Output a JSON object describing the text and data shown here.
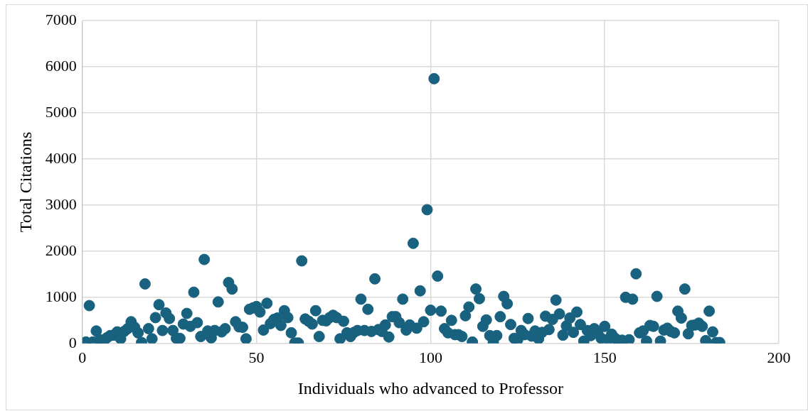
{
  "chart_data": {
    "type": "scatter",
    "xlabel": "Individuals who advanced to Professor",
    "ylabel": "Total Citations",
    "x": [
      1,
      2,
      3,
      4,
      5,
      6,
      7,
      8,
      9,
      10,
      11,
      12,
      13,
      14,
      15,
      16,
      17,
      18,
      19,
      20,
      21,
      22,
      23,
      24,
      25,
      26,
      27,
      28,
      29,
      30,
      31,
      32,
      33,
      34,
      35,
      36,
      37,
      38,
      39,
      40,
      41,
      42,
      43,
      44,
      45,
      46,
      47,
      48,
      49,
      50,
      51,
      52,
      53,
      54,
      55,
      56,
      57,
      58,
      59,
      60,
      61,
      62,
      63,
      64,
      65,
      66,
      67,
      68,
      69,
      70,
      71,
      72,
      73,
      74,
      75,
      76,
      77,
      78,
      79,
      80,
      81,
      82,
      83,
      84,
      85,
      86,
      87,
      88,
      89,
      90,
      91,
      92,
      93,
      94,
      95,
      96,
      97,
      98,
      99,
      100,
      101,
      102,
      103,
      104,
      105,
      106,
      107,
      108,
      109,
      110,
      111,
      112,
      113,
      114,
      115,
      116,
      117,
      118,
      119,
      120,
      121,
      122,
      123,
      124,
      125,
      126,
      127,
      128,
      129,
      130,
      131,
      132,
      133,
      134,
      135,
      136,
      137,
      138,
      139,
      140,
      141,
      142,
      143,
      144,
      145,
      146,
      147,
      148,
      149,
      150,
      151,
      152,
      153,
      154,
      155,
      156,
      157,
      158,
      159,
      160,
      161,
      162,
      163,
      164,
      165,
      166,
      167,
      168,
      169,
      170,
      171,
      172,
      173,
      174,
      175,
      176,
      177,
      178,
      179,
      180,
      181,
      182,
      183
    ],
    "series": [
      {
        "color": "#19627f",
        "values": [
          30,
          820,
          30,
          270,
          80,
          20,
          120,
          170,
          180,
          250,
          100,
          260,
          320,
          470,
          350,
          230,
          20,
          1290,
          320,
          100,
          560,
          840,
          280,
          660,
          540,
          280,
          110,
          110,
          420,
          650,
          370,
          1110,
          450,
          150,
          1820,
          270,
          120,
          280,
          900,
          250,
          320,
          1320,
          1180,
          470,
          360,
          350,
          100,
          740,
          770,
          800,
          680,
          290,
          870,
          430,
          520,
          550,
          390,
          710,
          560,
          230,
          10,
          10,
          1790,
          530,
          480,
          420,
          710,
          150,
          500,
          490,
          560,
          610,
          560,
          100,
          480,
          230,
          150,
          240,
          280,
          960,
          280,
          740,
          260,
          1400,
          300,
          260,
          400,
          140,
          580,
          580,
          450,
          960,
          290,
          400,
          2170,
          330,
          1140,
          470,
          2900,
          720,
          5740,
          1460,
          700,
          320,
          230,
          500,
          190,
          190,
          150,
          600,
          790,
          30,
          1180,
          970,
          370,
          510,
          170,
          20,
          170,
          580,
          1020,
          860,
          410,
          110,
          80,
          280,
          190,
          540,
          160,
          270,
          100,
          240,
          590,
          300,
          520,
          940,
          640,
          180,
          380,
          550,
          240,
          680,
          410,
          50,
          280,
          170,
          320,
          230,
          110,
          370,
          90,
          200,
          110,
          50,
          70,
          1000,
          80,
          960,
          1510,
          230,
          270,
          50,
          390,
          370,
          1020,
          50,
          290,
          330,
          260,
          230,
          700,
          550,
          1180,
          210,
          390,
          400,
          440,
          370,
          60,
          700,
          250,
          20,
          20
        ]
      }
    ],
    "xlim": [
      0,
      200
    ],
    "xticks": [
      0,
      50,
      100,
      150,
      200
    ],
    "ylim": [
      0,
      7000
    ],
    "yticks": [
      0,
      1000,
      2000,
      3000,
      4000,
      5000,
      6000,
      7000
    ],
    "grid": true,
    "marker": "circle",
    "legend": false
  }
}
